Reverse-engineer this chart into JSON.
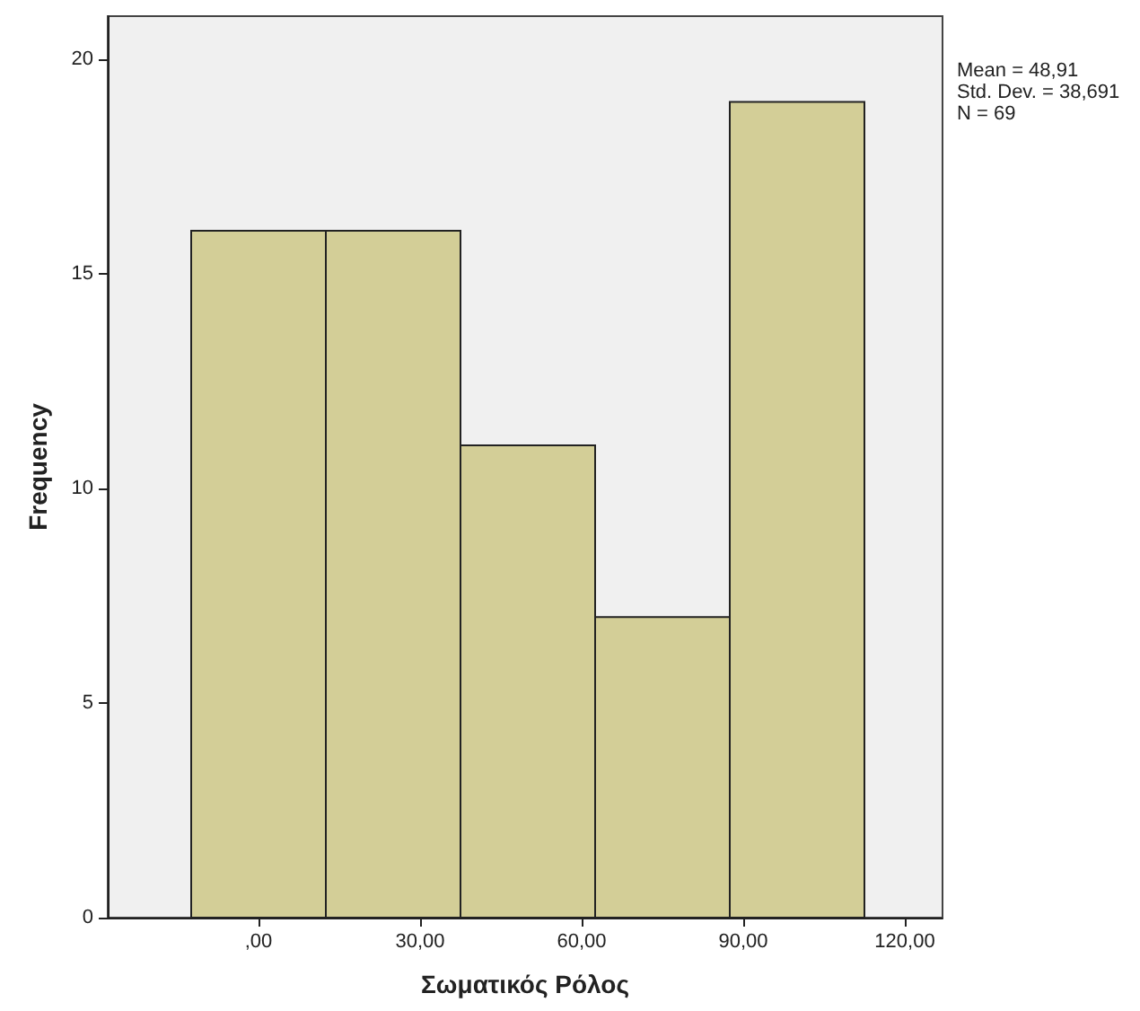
{
  "chart_data": {
    "type": "histogram",
    "xlabel": "Σωματικός Ρόλος",
    "ylabel": "Frequency",
    "bins": [
      -12.5,
      12.5,
      37.5,
      62.5,
      87.5,
      112.5
    ],
    "values": [
      16,
      16,
      11,
      7,
      19
    ],
    "color": "#d3ce97",
    "xlim": [
      -28,
      127
    ],
    "xticks": [
      {
        "value": 0,
        "label": ",00"
      },
      {
        "value": 30,
        "label": "30,00"
      },
      {
        "value": 60,
        "label": "60,00"
      },
      {
        "value": 90,
        "label": "90,00"
      },
      {
        "value": 120,
        "label": "120,00"
      }
    ],
    "ylim": [
      0,
      21
    ],
    "yticks": [
      0,
      5,
      10,
      15,
      20
    ],
    "grid": false,
    "annotations": [
      "Mean = 48,91",
      "Std. Dev. = 38,691",
      "N = 69"
    ]
  }
}
